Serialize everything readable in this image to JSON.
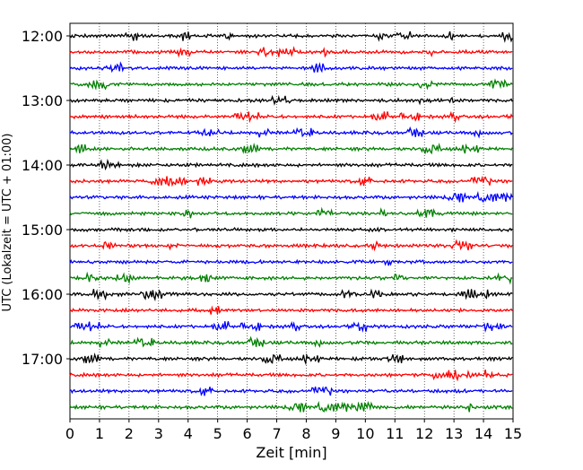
{
  "chart_data": {
    "type": "line",
    "subtype": "helicorder",
    "title": "",
    "xlabel": "Zeit  [min]",
    "ylabel": "UTC (Lokalzeit = UTC + 01:00)",
    "xlim": [
      0,
      15
    ],
    "x_ticks": [
      "0",
      "1",
      "2",
      "3",
      "4",
      "5",
      "6",
      "7",
      "8",
      "9",
      "10",
      "11",
      "12",
      "13",
      "14",
      "15"
    ],
    "y_tick_labels": [
      "12:00",
      "13:00",
      "14:00",
      "15:00",
      "16:00",
      "17:00"
    ],
    "trace_start": "12:00",
    "trace_interval_minutes": 15,
    "trace_count": 24,
    "trace_colors": [
      "#000000",
      "#ff0000",
      "#0000ff",
      "#008000"
    ],
    "grid": "vertical dotted at each minute",
    "legend": "none"
  }
}
